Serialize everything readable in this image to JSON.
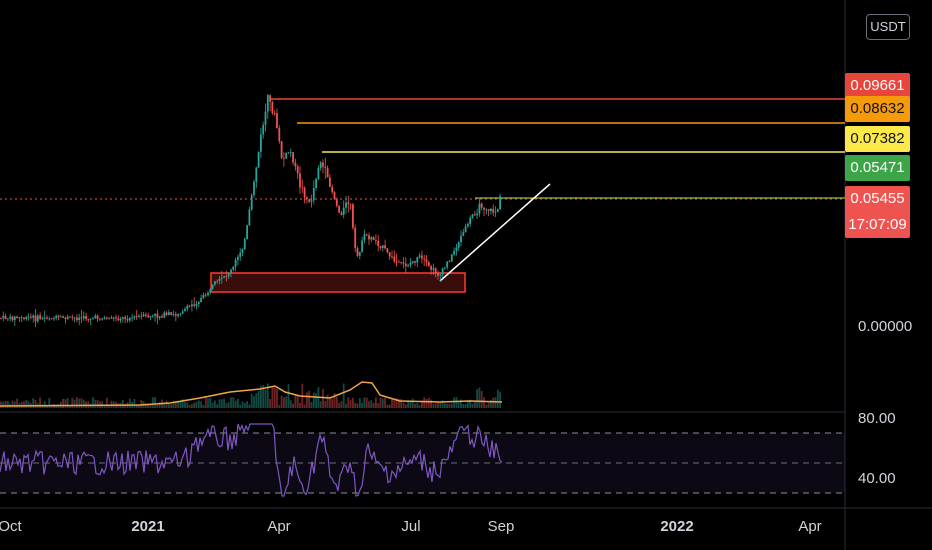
{
  "currency": "USDT",
  "price_levels": [
    {
      "label": "0.09661",
      "color": "#e8453c",
      "style": "red"
    },
    {
      "label": "0.08632",
      "color": "#f59a0b",
      "style": "orange"
    },
    {
      "label": "0.07382",
      "color": "#fbe94a",
      "style": "yellow"
    },
    {
      "label": "0.05471",
      "color": "#3ba547",
      "style": "green"
    }
  ],
  "current_price": {
    "value": "0.05455",
    "countdown": "17:07:09",
    "color": "#ef5350"
  },
  "y_axis": {
    "zero_label": "0.00000"
  },
  "rsi_axis": {
    "upper": "80.00",
    "lower": "40.00"
  },
  "x_axis": [
    {
      "label": "Oct",
      "bold": false
    },
    {
      "label": "2021",
      "bold": true
    },
    {
      "label": "Apr",
      "bold": false
    },
    {
      "label": "Jul",
      "bold": false
    },
    {
      "label": "Sep",
      "bold": false
    },
    {
      "label": "2022",
      "bold": true
    },
    {
      "label": "Apr",
      "bold": false
    }
  ],
  "colors": {
    "up": "#26a69a",
    "down": "#ef5350",
    "rsi": "#7e57c2",
    "volume_ma": "#f0a44b",
    "support_box": "#ff3b30"
  }
}
